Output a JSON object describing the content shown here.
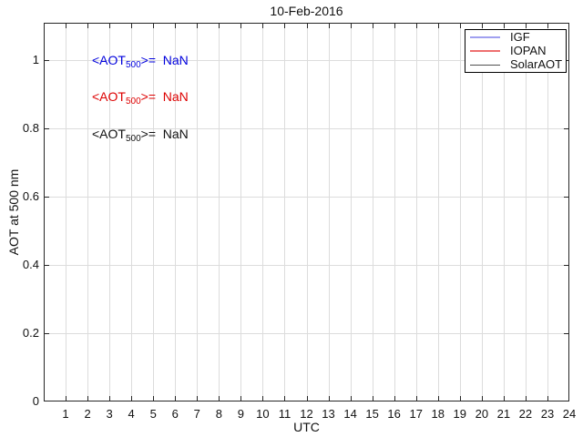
{
  "figure": {
    "title": "10-Feb-2016",
    "xlabel": "UTC",
    "ylabel": "AOT at 500 nm"
  },
  "axis": {
    "xticks": [
      "1",
      "2",
      "3",
      "4",
      "5",
      "6",
      "7",
      "8",
      "9",
      "10",
      "11",
      "12",
      "13",
      "14",
      "15",
      "16",
      "17",
      "18",
      "19",
      "20",
      "21",
      "22",
      "23",
      "24"
    ],
    "yticks": [
      "0",
      "0.2",
      "0.4",
      "0.6",
      "0.8",
      "1"
    ]
  },
  "legend": {
    "items": [
      {
        "label": "IGF",
        "color": "#a0a0f0"
      },
      {
        "label": "IOPAN",
        "color": "#ee7070"
      },
      {
        "label": "SolarAOT",
        "color": "#505050"
      }
    ]
  },
  "annotations": [
    {
      "prefix": "<AOT",
      "subscript": "500",
      "suffix": ">=  NaN",
      "color": "#0000dd"
    },
    {
      "prefix": "<AOT",
      "subscript": "500",
      "suffix": ">=  NaN",
      "color": "#dd0000"
    },
    {
      "prefix": "<AOT",
      "subscript": "500",
      "suffix": ">=  NaN",
      "color": "#111111"
    }
  ],
  "colors": {
    "grid": "#dcdcdc",
    "axis": "#262626",
    "background": "#ffffff"
  },
  "chart_data": {
    "type": "line",
    "title": "10-Feb-2016",
    "xlabel": "UTC",
    "ylabel": "AOT at 500 nm",
    "xlim": [
      0,
      24
    ],
    "ylim": [
      0,
      1.11
    ],
    "xticks": [
      1,
      2,
      3,
      4,
      5,
      6,
      7,
      8,
      9,
      10,
      11,
      12,
      13,
      14,
      15,
      16,
      17,
      18,
      19,
      20,
      21,
      22,
      23,
      24
    ],
    "yticks": [
      0,
      0.2,
      0.4,
      0.6,
      0.8,
      1
    ],
    "grid": true,
    "legend_position": "upper-right",
    "series": [
      {
        "name": "IGF",
        "color": "#0000ff",
        "x": [],
        "y": [],
        "mean_label": "<AOT500>=  NaN"
      },
      {
        "name": "IOPAN",
        "color": "#ff0000",
        "x": [],
        "y": [],
        "mean_label": "<AOT500>=  NaN"
      },
      {
        "name": "SolarAOT",
        "color": "#000000",
        "x": [],
        "y": [],
        "mean_label": "<AOT500>=  NaN"
      }
    ]
  }
}
